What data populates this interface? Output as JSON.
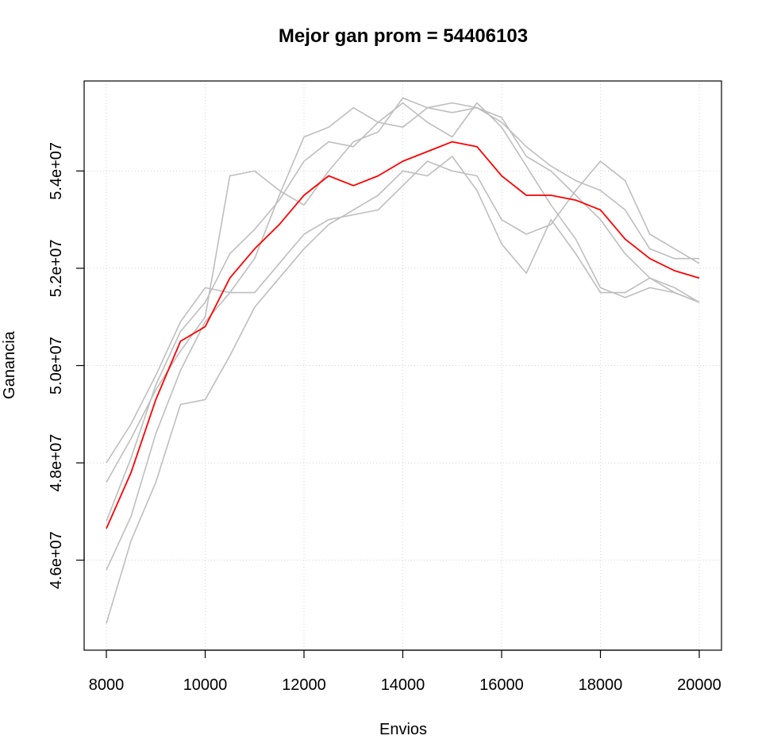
{
  "chart_data": {
    "type": "line",
    "title": "Mejor gan prom = 54406103",
    "xlabel": "Envios",
    "ylabel": "Ganancia",
    "xlim": [
      7550,
      20450
    ],
    "ylim": [
      44150000,
      55850000
    ],
    "x_ticks": [
      8000,
      10000,
      12000,
      14000,
      16000,
      18000,
      20000
    ],
    "x_tick_labels": [
      "8000",
      "10000",
      "12000",
      "14000",
      "16000",
      "18000",
      "20000"
    ],
    "y_ticks": [
      46000000,
      48000000,
      50000000,
      52000000,
      54000000
    ],
    "y_tick_labels": [
      "4.6e+07",
      "4.8e+07",
      "5.0e+07",
      "5.2e+07",
      "5.4e+07"
    ],
    "grid": true,
    "legend": "none",
    "colors": {
      "series": "#bebebe",
      "average": "#ff0000",
      "grid": "#d3d3d3"
    },
    "series": [
      {
        "x": [
          8000,
          8500,
          9000,
          9500,
          10000,
          10500,
          11000,
          11500,
          12000,
          12500,
          13000,
          13500,
          14000,
          14500,
          15000,
          15500,
          16000,
          16500,
          17000,
          17500,
          18000,
          18500,
          19000,
          19500,
          20000
        ],
        "values": [
          47600000,
          48500000,
          49500000,
          50300000,
          51000000,
          53900000,
          54000000,
          53600000,
          53300000,
          54000000,
          54600000,
          54800000,
          55500000,
          55300000,
          55200000,
          55300000,
          55000000,
          54500000,
          54100000,
          53800000,
          53600000,
          53200000,
          52400000,
          52200000,
          52200000
        ]
      },
      {
        "x": [
          8000,
          8500,
          9000,
          9500,
          10000,
          10500,
          11000,
          11500,
          12000,
          12500,
          13000,
          13500,
          14000,
          14500,
          15000,
          15500,
          16000,
          16500,
          17000,
          17500,
          18000,
          18500,
          19000,
          19500,
          20000
        ],
        "values": [
          48000000,
          48800000,
          49800000,
          50900000,
          51600000,
          51500000,
          52200000,
          53500000,
          54700000,
          54900000,
          55300000,
          55000000,
          54900000,
          55300000,
          55400000,
          55300000,
          55100000,
          54300000,
          54000000,
          53500000,
          53000000,
          52300000,
          51800000,
          51500000,
          51300000
        ]
      },
      {
        "x": [
          8000,
          8500,
          9000,
          9500,
          10000,
          10500,
          11000,
          11500,
          12000,
          12500,
          13000,
          13500,
          14000,
          14500,
          15000,
          15500,
          16000,
          16500,
          17000,
          17500,
          18000,
          18500,
          19000,
          19500,
          20000
        ],
        "values": [
          46800000,
          48100000,
          49600000,
          50700000,
          51300000,
          52300000,
          52800000,
          53400000,
          54200000,
          54600000,
          54500000,
          55000000,
          55400000,
          55000000,
          54700000,
          55400000,
          54900000,
          54100000,
          53300000,
          52600000,
          51600000,
          51400000,
          51600000,
          51500000,
          51300000
        ]
      },
      {
        "x": [
          8000,
          8500,
          9000,
          9500,
          10000,
          10500,
          11000,
          11500,
          12000,
          12500,
          13000,
          13500,
          14000,
          14500,
          15000,
          15500,
          16000,
          16500,
          17000,
          17500,
          18000,
          18500,
          19000,
          19500,
          20000
        ],
        "values": [
          45800000,
          46900000,
          48600000,
          49900000,
          50900000,
          51500000,
          51500000,
          52100000,
          52700000,
          53000000,
          53100000,
          53200000,
          53700000,
          54200000,
          54000000,
          53900000,
          53000000,
          52700000,
          52900000,
          53600000,
          54200000,
          53800000,
          52700000,
          52400000,
          52100000
        ]
      },
      {
        "x": [
          8000,
          8500,
          9000,
          9500,
          10000,
          10500,
          11000,
          11500,
          12000,
          12500,
          13000,
          13500,
          14000,
          14500,
          15000,
          15500,
          16000,
          16500,
          17000,
          17500,
          18000,
          18500,
          19000,
          19500,
          20000
        ],
        "values": [
          44700000,
          46400000,
          47600000,
          49200000,
          49300000,
          50200000,
          51200000,
          51800000,
          52400000,
          52900000,
          53200000,
          53500000,
          54000000,
          53900000,
          54300000,
          53600000,
          52500000,
          51900000,
          53000000,
          52300000,
          51500000,
          51500000,
          51800000,
          51600000,
          51300000
        ]
      },
      {
        "name": "average",
        "x": [
          8000,
          8500,
          9000,
          9500,
          10000,
          10500,
          11000,
          11500,
          12000,
          12500,
          13000,
          13500,
          14000,
          14500,
          15000,
          15500,
          16000,
          16500,
          17000,
          17500,
          18000,
          18500,
          19000,
          19500,
          20000
        ],
        "values": [
          46650000,
          47800000,
          49300000,
          50500000,
          50800000,
          51800000,
          52400000,
          52900000,
          53500000,
          53900000,
          53700000,
          53900000,
          54200000,
          54400000,
          54600000,
          54500000,
          53900000,
          53500000,
          53500000,
          53400000,
          53200000,
          52600000,
          52200000,
          51950000,
          51800000
        ]
      }
    ]
  }
}
